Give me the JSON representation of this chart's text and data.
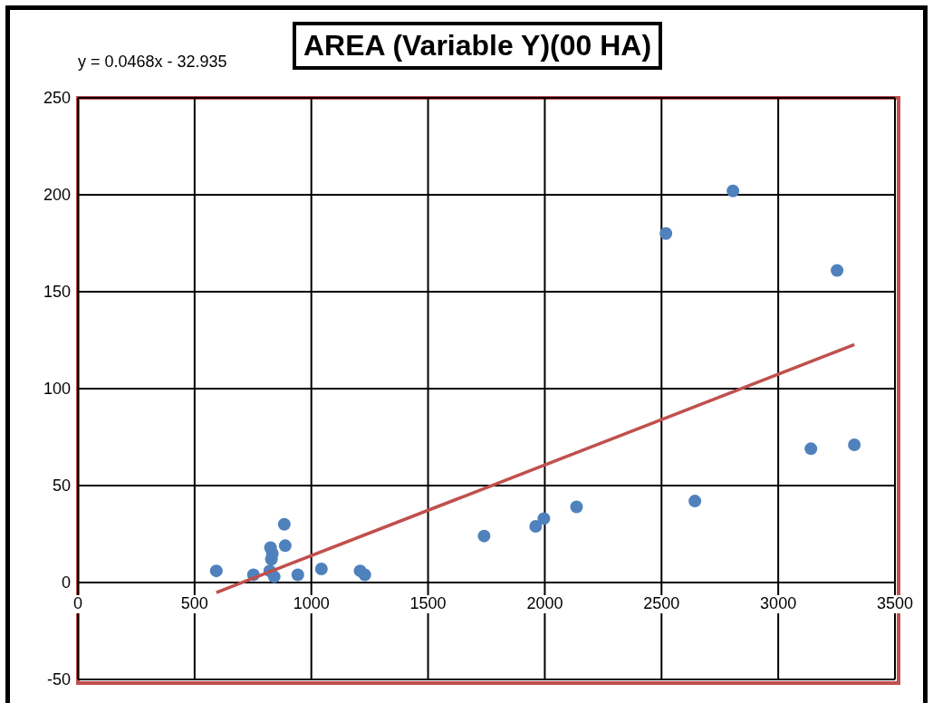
{
  "chart_data": {
    "type": "scatter",
    "title": "AREA (Variable Y)(00 HA)",
    "annotations": [
      "y = 0.0468x - 32.935"
    ],
    "xlim": [
      0,
      3500
    ],
    "xticks": [
      0,
      500,
      1000,
      1500,
      2000,
      2500,
      3000,
      3500
    ],
    "ylim": [
      -50,
      250
    ],
    "yticks": [
      -50,
      0,
      50,
      100,
      150,
      200,
      250
    ],
    "grid": true,
    "marker": "circle",
    "series": [
      {
        "color": "#4f81bd",
        "x": [
          593,
          752,
          822,
          825,
          829,
          833,
          841,
          884,
          888,
          942,
          1043,
          1209,
          1229,
          1740,
          1961,
          1996,
          2136,
          2519,
          2643,
          2806,
          3140,
          3252,
          3326
        ],
        "values": [
          6,
          4,
          6,
          18,
          12,
          15,
          3,
          30,
          19,
          4,
          7,
          6,
          4,
          24,
          29,
          33,
          39,
          180,
          42,
          202,
          69,
          161,
          71
        ]
      },
      {
        "type": "line",
        "color": "#c0504d",
        "x": [
          593,
          3326
        ],
        "values": [
          -5.2,
          122.7
        ],
        "marker": "none"
      }
    ]
  }
}
